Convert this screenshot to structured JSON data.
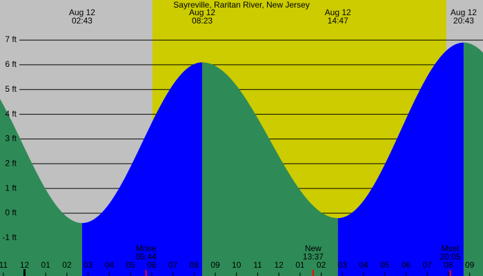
{
  "chart_data": {
    "type": "tide",
    "title": "Sayreville, Raritan River, New Jersey",
    "tides": [
      {
        "date": "Aug 12",
        "time": "02:43",
        "height": -0.4
      },
      {
        "date": "Aug 12",
        "time": "08:23",
        "height": 6.1
      },
      {
        "date": "Aug 12",
        "time": "14:47",
        "height": -0.2
      },
      {
        "date": "Aug 12",
        "time": "20:43",
        "height": 6.9
      }
    ],
    "events": [
      {
        "label": "Mrise",
        "time": "05:44"
      },
      {
        "label": "New",
        "time": "13:37"
      },
      {
        "label": "Mset",
        "time": "20:05"
      }
    ],
    "daylight": [
      6.03,
      19.9
    ],
    "colors": {
      "rising": "#0000ff",
      "falling": "#2e8b57",
      "day": "#cccc00",
      "night": "#c0c0c0",
      "event": "#ff0000"
    },
    "xlim": [
      -1.156,
      21.63
    ],
    "xticks": [
      {
        "value": -1,
        "label": "11"
      },
      {
        "value": 0,
        "label": "12"
      },
      {
        "value": 1,
        "label": "01"
      },
      {
        "value": 2,
        "label": "02"
      },
      {
        "value": 3,
        "label": "03"
      },
      {
        "value": 4,
        "label": "04"
      },
      {
        "value": 5,
        "label": "05"
      },
      {
        "value": 6,
        "label": "06"
      },
      {
        "value": 7,
        "label": "07"
      },
      {
        "value": 8,
        "label": "08"
      },
      {
        "value": 9,
        "label": "09"
      },
      {
        "value": 10,
        "label": "10"
      },
      {
        "value": 11,
        "label": "11"
      },
      {
        "value": 12,
        "label": "12"
      },
      {
        "value": 13,
        "label": "01"
      },
      {
        "value": 14,
        "label": "02"
      },
      {
        "value": 15,
        "label": "03"
      },
      {
        "value": 16,
        "label": "04"
      },
      {
        "value": 17,
        "label": "05"
      },
      {
        "value": 18,
        "label": "06"
      },
      {
        "value": 19,
        "label": "07"
      },
      {
        "value": 20,
        "label": "08"
      },
      {
        "value": 21,
        "label": "09"
      }
    ],
    "ylim": [
      -2.54,
      8.62
    ],
    "yticks": [
      {
        "value": 7,
        "label": "7 ft"
      },
      {
        "value": 6,
        "label": "6 ft"
      },
      {
        "value": 5,
        "label": "5 ft"
      },
      {
        "value": 4,
        "label": "4 ft"
      },
      {
        "value": 3,
        "label": "3 ft"
      },
      {
        "value": 2,
        "label": "2 ft"
      },
      {
        "value": 1,
        "label": "1 ft"
      },
      {
        "value": 0,
        "label": "0 ft"
      },
      {
        "value": -1,
        "label": "-1 ft"
      }
    ],
    "grid": true
  }
}
